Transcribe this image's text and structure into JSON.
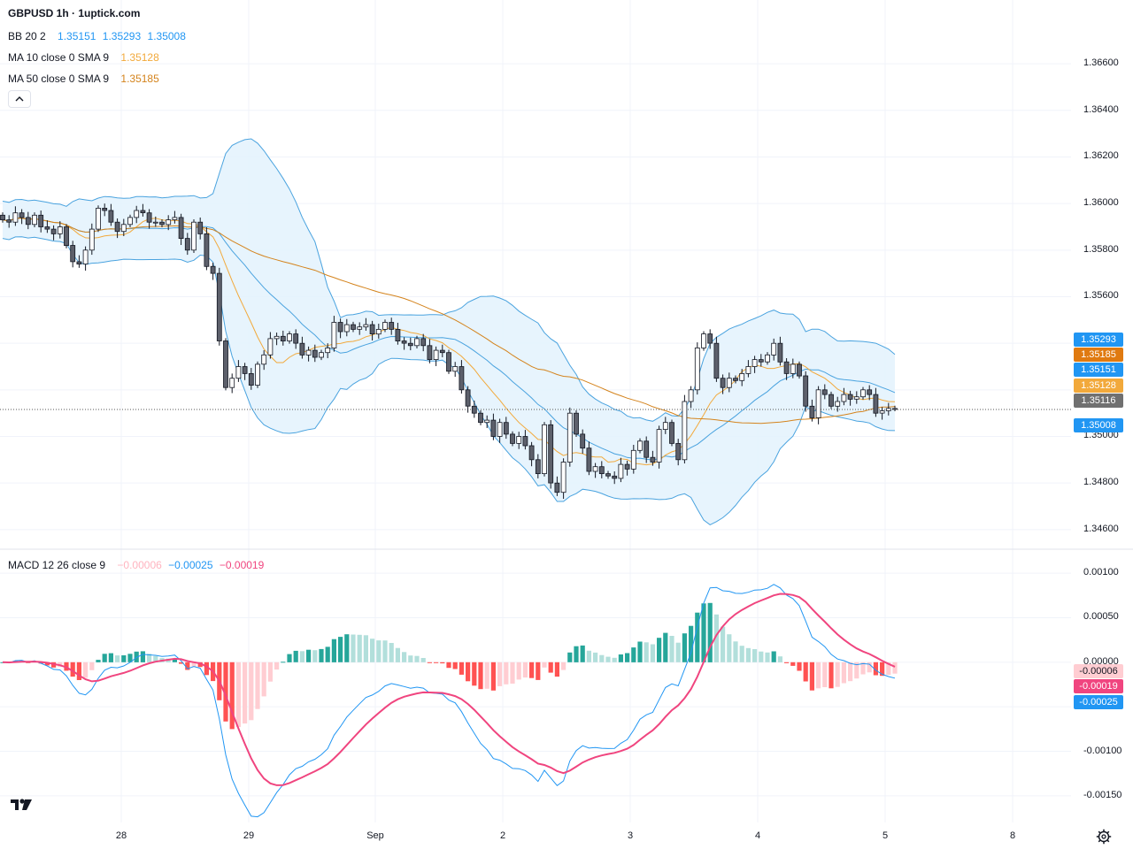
{
  "title": "GBPUSD 1h · 1uptick.com",
  "legend": {
    "bb": {
      "label": "BB 20 2",
      "v1": "1.35151",
      "v2": "1.35293",
      "v3": "1.35008"
    },
    "ma10": {
      "label": "MA 10 close 0 SMA 9",
      "value": "1.35128"
    },
    "ma50": {
      "label": "MA 50 close 0 SMA 9",
      "value": "1.35185"
    },
    "macd": {
      "label": "MACD 12 26 close 9",
      "hist": "−0.00006",
      "macd": "−0.00025",
      "signal": "−0.00019"
    }
  },
  "price_axis": [
    "1.36600",
    "1.36400",
    "1.36200",
    "1.36000",
    "1.35800",
    "1.35600",
    "1.35400",
    "1.35200",
    "1.35000",
    "1.34800",
    "1.34600"
  ],
  "macd_axis": [
    "0.00100",
    "0.00050",
    "0.00000",
    "-0.00050",
    "-0.00100",
    "-0.00150"
  ],
  "time_axis": [
    "28",
    "29",
    "Sep",
    "2",
    "3",
    "4",
    "5",
    "8"
  ],
  "price_tags": [
    {
      "text": "1.35293",
      "color": "#2196f3"
    },
    {
      "text": "1.35185",
      "color": "#e07a10"
    },
    {
      "text": "1.35151",
      "color": "#2196f3"
    },
    {
      "text": "1.35128",
      "color": "#f2a93b"
    },
    {
      "text": "1.35116",
      "color": "#707070"
    },
    {
      "text": "1.35008",
      "color": "#2196f3"
    }
  ],
  "macd_tags": [
    {
      "text": "-0.00006",
      "color": "#ffcdd2",
      "fg": "#131722"
    },
    {
      "text": "-0.00019",
      "color": "#f0457f",
      "fg": "#ffffff"
    },
    {
      "text": "-0.00025",
      "color": "#2196f3",
      "fg": "#ffffff"
    }
  ],
  "colors": {
    "bb_fill": "#e3f2fd",
    "bb_line": "#4aa3df",
    "ma10": "#f2a93b",
    "ma50": "#d4831c",
    "candle_up": "#ffffff",
    "candle_down": "#5d606b",
    "macd_line": "#2196f3",
    "signal_line": "#f0457f",
    "hist_up_strong": "#26a69a",
    "hist_up_weak": "#b2dfdb",
    "hist_dn_strong": "#ff5252",
    "hist_dn_weak": "#ffcdd2"
  },
  "chart_data": {
    "type": "candlestick",
    "title": "GBPUSD 1h",
    "source": "1uptick.com",
    "price_ylim": [
      1.3455,
      1.3676
    ],
    "macd_ylim": [
      -0.0017,
      0.0012
    ],
    "close_series": [
      1.3593,
      1.3592,
      1.3596,
      1.3594,
      1.3591,
      1.3595,
      1.359,
      1.3589,
      1.3587,
      1.359,
      1.3582,
      1.3575,
      1.3574,
      1.358,
      1.3589,
      1.3598,
      1.3597,
      1.3592,
      1.3588,
      1.3591,
      1.3594,
      1.3597,
      1.3596,
      1.3592,
      1.3592,
      1.3591,
      1.3593,
      1.3594,
      1.3585,
      1.358,
      1.3592,
      1.3587,
      1.3573,
      1.357,
      1.3541,
      1.3521,
      1.3525,
      1.353,
      1.3527,
      1.3522,
      1.3531,
      1.3535,
      1.3542,
      1.3543,
      1.3541,
      1.3544,
      1.354,
      1.3535,
      1.3537,
      1.3534,
      1.3536,
      1.3538,
      1.3549,
      1.3545,
      1.3548,
      1.3546,
      1.3547,
      1.3548,
      1.3544,
      1.3546,
      1.3549,
      1.3546,
      1.3541,
      1.354,
      1.3539,
      1.3542,
      1.3539,
      1.3533,
      1.3537,
      1.3536,
      1.3528,
      1.353,
      1.352,
      1.3513,
      1.351,
      1.3506,
      1.3507,
      1.35,
      1.3506,
      1.3501,
      1.3497,
      1.35,
      1.3496,
      1.349,
      1.3484,
      1.3505,
      1.348,
      1.3476,
      1.3489,
      1.351,
      1.3501,
      1.3495,
      1.3485,
      1.3487,
      1.3484,
      1.3483,
      1.3482,
      1.3488,
      1.3486,
      1.3494,
      1.3498,
      1.3491,
      1.3489,
      1.3503,
      1.3506,
      1.3497,
      1.349,
      1.3515,
      1.352,
      1.3538,
      1.3544,
      1.354,
      1.3525,
      1.3521,
      1.3525,
      1.3524,
      1.3527,
      1.353,
      1.3533,
      1.3532,
      1.3535,
      1.354,
      1.3532,
      1.3527,
      1.3531,
      1.3526,
      1.3513,
      1.3508,
      1.352,
      1.3518,
      1.3513,
      1.3515,
      1.3518,
      1.3516,
      1.3517,
      1.352,
      1.3518,
      1.351,
      1.3511,
      1.3512,
      1.3512
    ],
    "bb_period": 20,
    "bb_mult": 2,
    "ma_fast_period": 10,
    "ma_slow_period": 50,
    "macd_params": [
      12,
      26,
      9
    ],
    "last": {
      "bb_basis": 1.35151,
      "bb_upper": 1.35293,
      "bb_lower": 1.35008,
      "ma10": 1.35128,
      "ma50": 1.35185,
      "price": 1.35116,
      "macd": -0.00025,
      "signal": -0.00019,
      "hist": -6e-05
    },
    "x_ticks": [
      "28",
      "29",
      "Sep",
      "2",
      "3",
      "4",
      "5",
      "8"
    ]
  }
}
